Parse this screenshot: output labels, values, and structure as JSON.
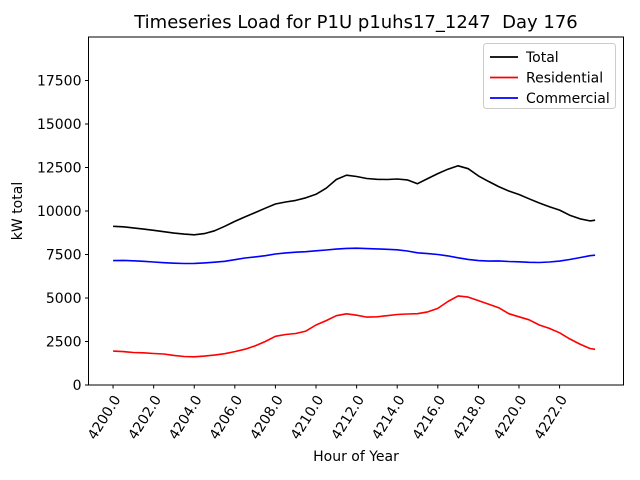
{
  "chart_data": {
    "type": "line",
    "title": "Timeseries Load for P1U p1uhs17_1247  Day 176",
    "xlabel": "Hour of Year",
    "ylabel": "kW total",
    "grid": false,
    "legend_position": "upper right",
    "xlim": [
      4198.79,
      4225.15
    ],
    "ylim": [
      0,
      20000
    ],
    "xticks": [
      4200,
      4202,
      4204,
      4206,
      4208,
      4210,
      4212,
      4214,
      4216,
      4218,
      4220,
      4222
    ],
    "xtick_labels": [
      "4200.0",
      "4202.0",
      "4204.0",
      "4206.0",
      "4208.0",
      "4210.0",
      "4212.0",
      "4214.0",
      "4216.0",
      "4218.0",
      "4220.0",
      "4222.0"
    ],
    "yticks": [
      0,
      2500,
      5000,
      7500,
      10000,
      12500,
      15000,
      17500
    ],
    "ytick_labels": [
      "0",
      "2500",
      "5000",
      "7500",
      "10000",
      "12500",
      "15000",
      "17500"
    ],
    "x": [
      4200.0,
      4200.5,
      4201.0,
      4201.5,
      4202.0,
      4202.5,
      4203.0,
      4203.5,
      4204.0,
      4204.5,
      4205.0,
      4205.5,
      4206.0,
      4206.5,
      4207.0,
      4207.5,
      4208.0,
      4208.5,
      4209.0,
      4209.5,
      4210.0,
      4210.5,
      4211.0,
      4211.5,
      4212.0,
      4212.5,
      4213.0,
      4213.5,
      4214.0,
      4214.5,
      4215.0,
      4215.5,
      4216.0,
      4216.5,
      4217.0,
      4217.5,
      4218.0,
      4218.5,
      4219.0,
      4219.5,
      4220.0,
      4220.5,
      4221.0,
      4221.5,
      4222.0,
      4222.5,
      4223.0,
      4223.5,
      4223.75
    ],
    "series": [
      {
        "name": "Total",
        "color": "#000000",
        "values": [
          9120,
          9090,
          9030,
          8960,
          8890,
          8810,
          8730,
          8670,
          8630,
          8700,
          8860,
          9120,
          9400,
          9660,
          9910,
          10160,
          10400,
          10520,
          10610,
          10760,
          10960,
          11310,
          11810,
          12060,
          11980,
          11870,
          11820,
          11810,
          11840,
          11790,
          11570,
          11860,
          12150,
          12400,
          12600,
          12430,
          12020,
          11700,
          11400,
          11150,
          10950,
          10700,
          10460,
          10250,
          10050,
          9760,
          9550,
          9430,
          9470
        ]
      },
      {
        "name": "Residential",
        "color": "#ff0000",
        "values": [
          1950,
          1920,
          1870,
          1850,
          1810,
          1780,
          1700,
          1640,
          1620,
          1660,
          1720,
          1800,
          1920,
          2060,
          2250,
          2500,
          2800,
          2900,
          2960,
          3100,
          3450,
          3700,
          3980,
          4090,
          4010,
          3900,
          3920,
          3980,
          4050,
          4080,
          4100,
          4200,
          4400,
          4800,
          5120,
          5050,
          4850,
          4650,
          4440,
          4100,
          3920,
          3750,
          3450,
          3250,
          3000,
          2650,
          2350,
          2100,
          2050
        ]
      },
      {
        "name": "Commercial",
        "color": "#0000ff",
        "values": [
          7150,
          7160,
          7140,
          7110,
          7070,
          7030,
          7000,
          6980,
          6990,
          7020,
          7060,
          7110,
          7200,
          7300,
          7360,
          7430,
          7530,
          7590,
          7630,
          7660,
          7710,
          7760,
          7810,
          7850,
          7860,
          7840,
          7820,
          7800,
          7770,
          7700,
          7600,
          7550,
          7500,
          7420,
          7310,
          7220,
          7150,
          7120,
          7130,
          7100,
          7080,
          7050,
          7040,
          7070,
          7120,
          7210,
          7320,
          7430,
          7460
        ]
      }
    ]
  }
}
